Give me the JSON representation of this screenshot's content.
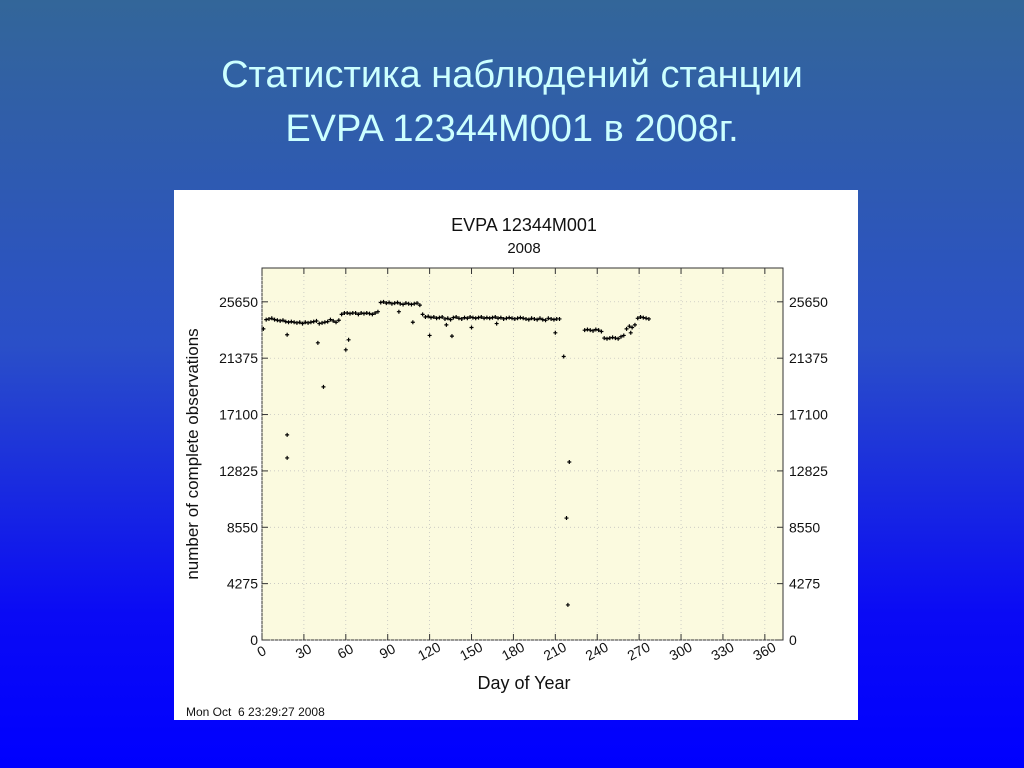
{
  "slide_title": [
    "Статистика наблюдений станции",
    "EVPA 12344M001 в 2008г."
  ],
  "chart_data": {
    "type": "scatter",
    "title": "EVPA 12344M001",
    "subtitle": "2008",
    "x_label": "Day of Year",
    "y_label": "number of complete observations",
    "footer": "Mon Oct  6 23:29:27 2008",
    "color": "#000000",
    "grid": true,
    "xlim": [
      0,
      373
    ],
    "xticks": [
      0,
      30,
      60,
      90,
      120,
      150,
      180,
      210,
      240,
      270,
      300,
      330,
      360
    ],
    "ylim": [
      0,
      28215
    ],
    "yticks": [
      0,
      4275,
      8550,
      12825,
      17100,
      21375,
      25650
    ],
    "x": [
      1,
      3,
      5,
      7,
      9,
      11,
      13,
      15,
      17,
      19,
      21,
      23,
      25,
      27,
      29,
      31,
      33,
      35,
      37,
      39,
      41,
      43,
      45,
      47,
      49,
      51,
      53,
      55,
      57,
      59,
      61,
      63,
      65,
      67,
      69,
      71,
      73,
      75,
      77,
      79,
      81,
      83,
      85,
      87,
      89,
      91,
      93,
      95,
      97,
      99,
      101,
      103,
      105,
      107,
      109,
      111,
      113,
      115,
      117,
      119,
      121,
      123,
      125,
      127,
      129,
      131,
      133,
      135,
      137,
      139,
      141,
      143,
      145,
      147,
      149,
      151,
      153,
      155,
      157,
      159,
      161,
      163,
      165,
      167,
      169,
      171,
      173,
      175,
      177,
      179,
      181,
      183,
      185,
      187,
      189,
      191,
      193,
      195,
      197,
      199,
      201,
      203,
      205,
      207,
      209,
      211,
      213,
      231,
      233,
      235,
      237,
      239,
      241,
      243,
      245,
      247,
      249,
      251,
      253,
      255,
      257,
      259,
      261,
      263,
      265,
      267,
      269,
      271,
      273,
      275,
      277,
      18,
      18,
      18,
      40,
      44,
      60,
      62,
      98,
      108,
      120,
      132,
      136,
      150,
      168,
      210,
      216,
      220,
      218,
      219,
      264
    ],
    "values": [
      23600,
      24300,
      24350,
      24400,
      24300,
      24250,
      24200,
      24250,
      24150,
      24100,
      24150,
      24100,
      24050,
      24100,
      24000,
      24100,
      24050,
      24100,
      24150,
      24200,
      24000,
      24050,
      24100,
      24150,
      24300,
      24200,
      24100,
      24250,
      24700,
      24800,
      24800,
      24750,
      24800,
      24800,
      24700,
      24800,
      24750,
      24800,
      24750,
      24700,
      24800,
      24900,
      25600,
      25650,
      25550,
      25600,
      25500,
      25550,
      25600,
      25500,
      25450,
      25550,
      25500,
      25450,
      25500,
      25550,
      25400,
      24700,
      24500,
      24550,
      24450,
      24500,
      24400,
      24450,
      24500,
      24350,
      24400,
      24300,
      24450,
      24500,
      24400,
      24350,
      24450,
      24400,
      24500,
      24450,
      24400,
      24450,
      24500,
      24400,
      24450,
      24400,
      24450,
      24500,
      24400,
      24450,
      24350,
      24400,
      24450,
      24400,
      24350,
      24400,
      24450,
      24400,
      24350,
      24300,
      24400,
      24350,
      24300,
      24400,
      24300,
      24250,
      24400,
      24350,
      24300,
      24350,
      24350,
      23500,
      23550,
      23500,
      23450,
      23550,
      23500,
      23400,
      22900,
      22850,
      22900,
      22950,
      22900,
      22850,
      23000,
      23100,
      23600,
      23800,
      23700,
      23900,
      24400,
      24500,
      24450,
      24400,
      24350,
      23150,
      15560,
      13810,
      22540,
      19200,
      22010,
      22770,
      24900,
      24100,
      23100,
      23900,
      23050,
      23700,
      24000,
      23300,
      21500,
      13500,
      9250,
      2660,
      23300
    ]
  }
}
